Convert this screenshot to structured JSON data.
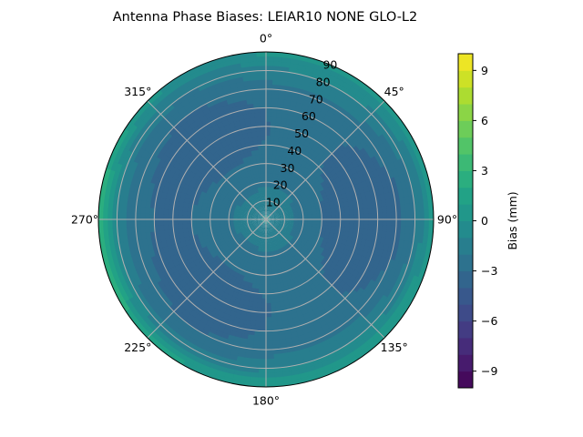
{
  "chart_data": {
    "type": "polar-contour",
    "title": "Antenna Phase Biases: LEIAR10         NONE GLO-L2",
    "angular_ticks": [
      "0°",
      "45°",
      "90°",
      "135°",
      "180°",
      "225°",
      "270°",
      "315°"
    ],
    "radial_ticks": [
      10,
      20,
      30,
      40,
      50,
      60,
      70,
      80,
      90
    ],
    "radial_range": [
      0,
      90
    ],
    "theta_direction": "clockwise",
    "theta_zero": "top",
    "grid": true,
    "colorbar": {
      "label": "Bias (mm)",
      "ticks": [
        -9,
        -6,
        -3,
        0,
        3,
        6,
        9
      ],
      "range": [
        -10,
        10
      ],
      "colormap": "viridis",
      "levels": 20
    },
    "field_description": "Bias in mm over azimuth/elevation grid; about -1 near center, dipping to about -3 in a ring at 30-60, rising to +3..+6 near 90 especially at azimuth 270 and 90-110, and 200-220.",
    "grid_samples": {
      "radius": [
        0,
        15,
        30,
        45,
        60,
        75,
        90
      ],
      "values_at_az_0": [
        -0.8,
        -1.3,
        -2.2,
        -2.8,
        -2.6,
        -0.8,
        2.0
      ],
      "values_at_az_90": [
        -0.8,
        -1.4,
        -2.4,
        -3.0,
        -2.4,
        0.5,
        5.0
      ],
      "values_at_az_180": [
        -0.8,
        -1.2,
        -2.0,
        -2.6,
        -2.2,
        -0.5,
        1.8
      ],
      "values_at_az_270": [
        -0.8,
        -1.3,
        -2.3,
        -3.0,
        -2.6,
        0.6,
        6.0
      ]
    }
  }
}
